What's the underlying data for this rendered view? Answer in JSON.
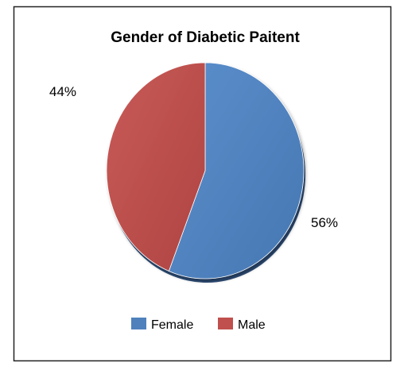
{
  "chart_data": {
    "type": "pie",
    "title": "Gender of Diabetic Paitent",
    "slices": [
      {
        "label": "Female",
        "value": 56,
        "display": "56%",
        "color": "#4F81BD"
      },
      {
        "label": "Male",
        "value": 44,
        "display": "44%",
        "color": "#C0504D"
      }
    ],
    "legend": {
      "position": "bottom",
      "items": [
        "Female",
        "Male"
      ]
    }
  }
}
